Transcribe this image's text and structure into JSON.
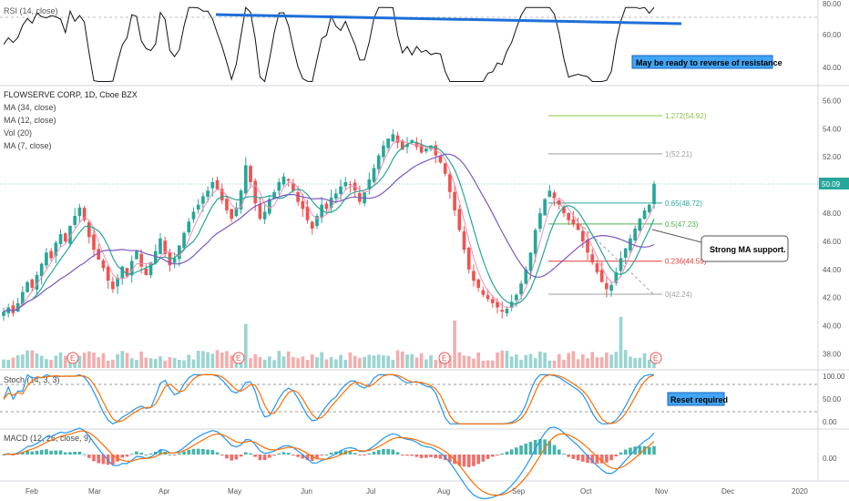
{
  "chart_data": {
    "type": "candlestick",
    "title": "FLOWSERVE CORP, 1D, Cboe BZX",
    "indicators_legend": [
      "MA (34, close)",
      "MA (12, close)",
      "Vol (20)",
      "MA (7, close)"
    ],
    "x_ticks": [
      "Feb",
      "Mar",
      "Apr",
      "May",
      "Jun",
      "Jul",
      "Aug",
      "Sep",
      "Oct",
      "Nov",
      "Dec",
      "2020"
    ],
    "price_axis": {
      "ticks": [
        "56.00",
        "54.00",
        "52.00",
        "50.00",
        "48.00",
        "46.00",
        "44.00",
        "42.00",
        "40.00",
        "38.00"
      ],
      "ylim": [
        37.0,
        56.8
      ]
    },
    "last_price": "50.09",
    "close_series": [
      41.0,
      41.3,
      40.9,
      41.6,
      42.4,
      43.1,
      42.7,
      43.6,
      44.4,
      45.2,
      44.8,
      45.9,
      46.5,
      46.0,
      47.1,
      47.8,
      48.4,
      47.5,
      46.3,
      45.4,
      44.7,
      44.1,
      43.2,
      42.6,
      43.4,
      44.2,
      43.5,
      44.6,
      45.3,
      44.2,
      43.6,
      44.5,
      45.3,
      46.2,
      45.1,
      44.3,
      44.8,
      45.7,
      46.6,
      47.4,
      48.1,
      48.6,
      49.2,
      49.6,
      50.2,
      49.7,
      48.9,
      48.2,
      47.6,
      48.4,
      49.6,
      51.4,
      50.2,
      48.7,
      47.6,
      48.1,
      49.0,
      49.5,
      50.2,
      50.6,
      50.3,
      49.6,
      48.8,
      48.3,
      47.5,
      46.9,
      47.8,
      48.6,
      48.3,
      49.1,
      49.4,
      49.9,
      50.2,
      50.0,
      49.6,
      48.8,
      49.5,
      50.4,
      51.2,
      52.1,
      52.8,
      53.3,
      53.6,
      53.0,
      52.5,
      52.9,
      53.2,
      52.7,
      52.3,
      52.6,
      52.8,
      52.1,
      51.6,
      50.8,
      49.5,
      48.2,
      46.8,
      45.4,
      44.0,
      43.2,
      42.7,
      42.2,
      41.9,
      41.6,
      41.3,
      41.0,
      41.2,
      41.7,
      42.2,
      43.0,
      44.0,
      45.2,
      46.8,
      48.0,
      49.0,
      49.6,
      49.1,
      48.6,
      48.0,
      47.5,
      47.2,
      46.8,
      46.0,
      45.2,
      44.5,
      43.8,
      43.1,
      42.6,
      42.9,
      43.8,
      44.8,
      45.5,
      46.2,
      46.9,
      47.6,
      48.2,
      48.6,
      50.09
    ],
    "price_lines": [
      {
        "label": "1.272(54.92)",
        "value": 54.92,
        "color": "#8bc34a"
      },
      {
        "label": "1(52.21)",
        "value": 52.21,
        "color": "#9e9e9e"
      },
      {
        "label": "0.65(48.72)",
        "value": 48.72,
        "color": "#26a69a"
      },
      {
        "label": "0.5(47.23)",
        "value": 47.23,
        "color": "#4caf50"
      },
      {
        "label": "0.236(44.59)",
        "value": 44.59,
        "color": "#e53935"
      },
      {
        "label": "0(42.24)",
        "value": 42.24,
        "color": "#9e9e9e"
      }
    ],
    "rsi": {
      "label": "RSI (14, close)",
      "ticks": [
        "80.00",
        "60.00",
        "40.00"
      ],
      "ylim": [
        30,
        82
      ]
    },
    "stoch": {
      "label": "Stoch (14, 3, 3)",
      "ticks": [
        "100.00",
        "50.00",
        "0.00"
      ],
      "ylim": [
        -5,
        110
      ]
    },
    "macd": {
      "label": "MACD (12, 26, close, 9)",
      "ticks": [
        "0.00"
      ],
      "ylim": [
        -1.2,
        1.2
      ]
    },
    "earnings_marker": "E"
  },
  "annotations": {
    "rsi_note": "May be ready to reverse of resistance",
    "ma_note": "Strong MA support.",
    "stoch_note": "Reset required"
  },
  "colors": {
    "up": "#26a69a",
    "down": "#ef5350",
    "ma_fast": "#f48fb1",
    "ma_mid": "#26a69a",
    "ma_slow": "#7e57c2",
    "trendline": "#1e6fd9",
    "macd_line": "#2196f3",
    "signal_line": "#ff6d00",
    "note_bg": "#42a5f5"
  }
}
